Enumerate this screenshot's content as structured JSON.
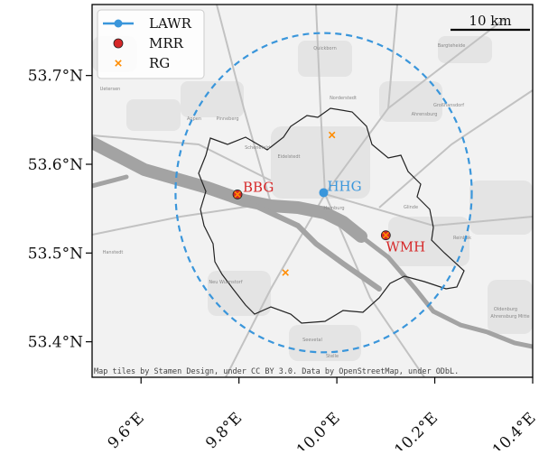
{
  "map": {
    "lon_range": [
      9.5,
      10.4
    ],
    "lat_range": [
      53.36,
      53.78
    ],
    "x_ticks": [
      {
        "value": 9.6,
        "label": "9.6°E"
      },
      {
        "value": 9.8,
        "label": "9.8°E"
      },
      {
        "value": 10.0,
        "label": "10.0°E"
      },
      {
        "value": 10.2,
        "label": "10.2°E"
      },
      {
        "value": 10.4,
        "label": "10.4°E"
      }
    ],
    "y_ticks": [
      {
        "value": 53.7,
        "label": "53.7°N"
      },
      {
        "value": 53.6,
        "label": "53.6°N"
      },
      {
        "value": 53.5,
        "label": "53.5°N"
      },
      {
        "value": 53.4,
        "label": "53.4°N"
      }
    ],
    "scale_bar": {
      "label": "10 km"
    },
    "attribution": "Map tiles by Stamen Design, under CC BY 3.0. Data by OpenStreetMap, under ODbL.",
    "legend": {
      "placement": "top-left",
      "entries": [
        {
          "label": "LAWR",
          "marker": "line-dot",
          "color": "#3a96db"
        },
        {
          "label": "MRR",
          "marker": "dot",
          "color": "#d62728"
        },
        {
          "label": "RG",
          "marker": "x",
          "color": "#ff8c00"
        }
      ]
    },
    "stations": {
      "lawr": {
        "name": "HHG",
        "lon": 9.973,
        "lat": 53.568,
        "color": "#3a96db"
      },
      "mrr": [
        {
          "name": "BBG",
          "lon": 9.797,
          "lat": 53.566,
          "color": "#d62728"
        },
        {
          "name": "WMH",
          "lon": 10.1,
          "lat": 53.52,
          "color": "#d62728"
        }
      ],
      "rain_gauges": [
        {
          "lon": 9.797,
          "lat": 53.566
        },
        {
          "lon": 10.1,
          "lat": 53.52
        },
        {
          "lon": 9.99,
          "lat": 53.633
        },
        {
          "lon": 9.895,
          "lat": 53.478
        }
      ]
    },
    "radar_range_km": 20,
    "colors": {
      "land": "#f2f2f2",
      "water": "#a3a3a3",
      "border": "#222222",
      "radar_circle": "#3a96db",
      "rain_gauge": "#ff8c00"
    },
    "place_labels": [
      "Quickborn",
      "Norderstedt",
      "Bargteheide",
      "Uetersen",
      "Appen",
      "Pinneberg",
      "Ahrensburg",
      "Großhansdorf",
      "Schenefeld",
      "Eidelstedt",
      "Hamburg",
      "Glinde",
      "Reinbek",
      "Hanstedt",
      "Neu Wulmstorf",
      "Seevetal",
      "Stelle",
      "Oldenburg",
      "Ahrensburg Mitte"
    ]
  }
}
